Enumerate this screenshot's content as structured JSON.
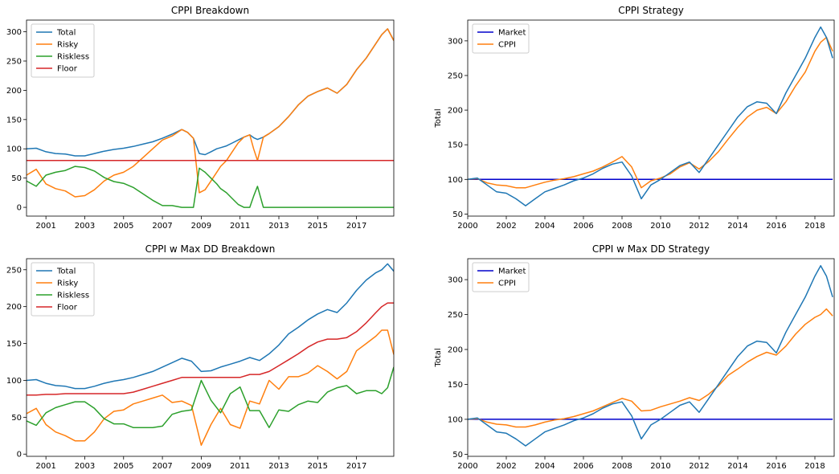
{
  "chart_data": [
    {
      "type": "line",
      "title": "CPPI Breakdown",
      "xlabel": "",
      "ylabel": "",
      "x_ticks": [
        "2001",
        "2003",
        "2005",
        "2007",
        "2009",
        "2011",
        "2013",
        "2015",
        "2017"
      ],
      "y_ticks": [
        "0",
        "50",
        "100",
        "150",
        "200",
        "250",
        "300"
      ],
      "xlim": [
        2000.0,
        2018.92
      ],
      "ylim": [
        -15,
        320
      ],
      "legend": "top-left",
      "x": [
        2000.0,
        2000.5,
        2001.0,
        2001.5,
        2002.0,
        2002.5,
        2003.0,
        2003.5,
        2004.0,
        2004.5,
        2005.0,
        2005.5,
        2006.0,
        2006.5,
        2007.0,
        2007.5,
        2008.0,
        2008.3,
        2008.6,
        2008.9,
        2009.2,
        2009.5,
        2009.8,
        2010.0,
        2010.3,
        2010.6,
        2010.9,
        2011.2,
        2011.5,
        2011.7,
        2011.9,
        2012.2,
        2012.5,
        2013.0,
        2013.5,
        2014.0,
        2014.5,
        2015.0,
        2015.5,
        2016.0,
        2016.5,
        2017.0,
        2017.5,
        2018.0,
        2018.3,
        2018.6,
        2018.92
      ],
      "series": [
        {
          "name": "Total",
          "color": "#1f77b4",
          "values": [
            100,
            101,
            95,
            92,
            91,
            88,
            88,
            92,
            96,
            99,
            101,
            104,
            108,
            112,
            118,
            125,
            133,
            128,
            118,
            92,
            90,
            95,
            100,
            102,
            105,
            110,
            115,
            120,
            124,
            119,
            116,
            120,
            126,
            138,
            155,
            175,
            190,
            198,
            204,
            195,
            210,
            235,
            255,
            280,
            295,
            305,
            285
          ]
        },
        {
          "name": "Risky",
          "color": "#ff7f0e",
          "values": [
            55,
            65,
            40,
            32,
            28,
            18,
            20,
            30,
            45,
            55,
            60,
            70,
            85,
            100,
            115,
            122,
            133,
            128,
            118,
            25,
            30,
            45,
            60,
            70,
            80,
            95,
            110,
            120,
            124,
            100,
            80,
            120,
            126,
            138,
            155,
            175,
            190,
            198,
            204,
            195,
            210,
            235,
            255,
            280,
            295,
            305,
            285
          ]
        },
        {
          "name": "Riskless",
          "color": "#2ca02c",
          "values": [
            45,
            36,
            55,
            60,
            63,
            70,
            68,
            62,
            51,
            44,
            41,
            34,
            23,
            12,
            3,
            3,
            0,
            0,
            0,
            67,
            60,
            50,
            40,
            32,
            25,
            15,
            5,
            0,
            0,
            19,
            36,
            0,
            0,
            0,
            0,
            0,
            0,
            0,
            0,
            0,
            0,
            0,
            0,
            0,
            0,
            0,
            0
          ]
        },
        {
          "name": "Floor",
          "color": "#d62728",
          "values": [
            80,
            80,
            80,
            80,
            80,
            80,
            80,
            80,
            80,
            80,
            80,
            80,
            80,
            80,
            80,
            80,
            80,
            80,
            80,
            80,
            80,
            80,
            80,
            80,
            80,
            80,
            80,
            80,
            80,
            80,
            80,
            80,
            80,
            80,
            80,
            80,
            80,
            80,
            80,
            80,
            80,
            80,
            80,
            80,
            80,
            80,
            80
          ]
        }
      ]
    },
    {
      "type": "line",
      "title": "CPPI Strategy",
      "xlabel": "",
      "ylabel": "Total",
      "x_ticks": [
        "2000",
        "2002",
        "2004",
        "2006",
        "2008",
        "2010",
        "2012",
        "2014",
        "2016",
        "2018"
      ],
      "y_ticks": [
        "50",
        "100",
        "150",
        "200",
        "250",
        "300"
      ],
      "xlim": [
        2000.0,
        2019.0
      ],
      "ylim": [
        47,
        330
      ],
      "legend": "top-left",
      "x": [
        2000.0,
        2000.5,
        2001.0,
        2001.5,
        2002.0,
        2002.5,
        2003.0,
        2003.5,
        2004.0,
        2004.5,
        2005.0,
        2005.5,
        2006.0,
        2006.5,
        2007.0,
        2007.5,
        2008.0,
        2008.5,
        2009.0,
        2009.5,
        2010.0,
        2010.5,
        2011.0,
        2011.5,
        2012.0,
        2012.5,
        2013.0,
        2013.5,
        2014.0,
        2014.5,
        2015.0,
        2015.5,
        2016.0,
        2016.5,
        2017.0,
        2017.5,
        2018.0,
        2018.3,
        2018.6,
        2018.92
      ],
      "series": [
        {
          "name": "Market",
          "color": "#0000cc",
          "values": [
            100,
            100,
            100,
            100,
            100,
            100,
            100,
            100,
            100,
            100,
            100,
            100,
            100,
            100,
            100,
            100,
            100,
            100,
            100,
            100,
            100,
            100,
            100,
            100,
            100,
            100,
            100,
            100,
            100,
            100,
            100,
            100,
            100,
            100,
            100,
            100,
            100,
            100,
            100,
            100
          ]
        },
        {
          "name": "CPPI",
          "color": "#ff7f0e",
          "values": [
            100,
            101,
            95,
            92,
            91,
            88,
            88,
            92,
            96,
            99,
            101,
            104,
            108,
            112,
            118,
            125,
            133,
            118,
            88,
            98,
            102,
            108,
            118,
            124,
            115,
            126,
            140,
            158,
            175,
            190,
            200,
            204,
            195,
            212,
            235,
            255,
            285,
            298,
            305,
            285
          ]
        },
        {
          "name": "Total",
          "color": "#1f77b4",
          "values": [
            100,
            102,
            92,
            82,
            80,
            72,
            62,
            72,
            82,
            87,
            92,
            98,
            102,
            108,
            116,
            122,
            125,
            105,
            72,
            92,
            100,
            110,
            120,
            125,
            110,
            130,
            150,
            170,
            190,
            205,
            212,
            210,
            195,
            225,
            250,
            275,
            305,
            320,
            305,
            275
          ]
        }
      ]
    },
    {
      "type": "line",
      "title": "CPPI w Max DD Breakdown",
      "xlabel": "",
      "ylabel": "",
      "x_ticks": [
        "2001",
        "2003",
        "2005",
        "2007",
        "2009",
        "2011",
        "2013",
        "2015",
        "2017"
      ],
      "y_ticks": [
        "0",
        "50",
        "100",
        "150",
        "200",
        "250"
      ],
      "xlim": [
        2000.0,
        2018.92
      ],
      "ylim": [
        -3,
        265
      ],
      "legend": "top-left",
      "x": [
        2000.0,
        2000.5,
        2001.0,
        2001.5,
        2002.0,
        2002.5,
        2003.0,
        2003.5,
        2004.0,
        2004.5,
        2005.0,
        2005.5,
        2006.0,
        2006.5,
        2007.0,
        2007.5,
        2008.0,
        2008.5,
        2009.0,
        2009.5,
        2010.0,
        2010.5,
        2011.0,
        2011.5,
        2012.0,
        2012.5,
        2013.0,
        2013.5,
        2014.0,
        2014.5,
        2015.0,
        2015.5,
        2016.0,
        2016.5,
        2017.0,
        2017.5,
        2018.0,
        2018.3,
        2018.6,
        2018.92
      ],
      "series": [
        {
          "name": "Total",
          "color": "#1f77b4",
          "values": [
            100,
            101,
            96,
            93,
            92,
            89,
            89,
            92,
            96,
            99,
            101,
            104,
            108,
            112,
            118,
            124,
            130,
            126,
            112,
            113,
            118,
            122,
            126,
            131,
            127,
            136,
            148,
            163,
            172,
            182,
            190,
            196,
            192,
            205,
            222,
            236,
            246,
            250,
            258,
            248
          ]
        },
        {
          "name": "Risky",
          "color": "#ff7f0e",
          "values": [
            55,
            62,
            40,
            30,
            25,
            18,
            18,
            30,
            48,
            58,
            60,
            68,
            72,
            76,
            80,
            70,
            72,
            66,
            12,
            40,
            62,
            40,
            35,
            72,
            68,
            100,
            88,
            105,
            105,
            110,
            120,
            112,
            102,
            112,
            140,
            150,
            160,
            168,
            168,
            135
          ]
        },
        {
          "name": "Riskless",
          "color": "#2ca02c",
          "values": [
            45,
            39,
            56,
            63,
            67,
            71,
            71,
            62,
            48,
            41,
            41,
            36,
            36,
            36,
            38,
            54,
            58,
            60,
            100,
            73,
            56,
            82,
            91,
            59,
            59,
            36,
            60,
            58,
            67,
            72,
            70,
            84,
            90,
            93,
            82,
            86,
            86,
            82,
            90,
            118
          ]
        },
        {
          "name": "Floor",
          "color": "#d62728",
          "values": [
            80,
            80,
            81,
            81,
            82,
            82,
            82,
            82,
            82,
            82,
            82,
            84,
            88,
            92,
            96,
            100,
            104,
            104,
            104,
            104,
            104,
            104,
            104,
            108,
            108,
            112,
            120,
            128,
            136,
            145,
            152,
            156,
            156,
            158,
            166,
            178,
            192,
            200,
            205,
            205
          ]
        }
      ]
    },
    {
      "type": "line",
      "title": "CPPI w Max DD Strategy",
      "xlabel": "",
      "ylabel": "Total",
      "x_ticks": [
        "2000",
        "2002",
        "2004",
        "2006",
        "2008",
        "2010",
        "2012",
        "2014",
        "2016",
        "2018"
      ],
      "y_ticks": [
        "50",
        "100",
        "150",
        "200",
        "250",
        "300"
      ],
      "xlim": [
        2000.0,
        2019.0
      ],
      "ylim": [
        47,
        330
      ],
      "legend": "top-left",
      "x": [
        2000.0,
        2000.5,
        2001.0,
        2001.5,
        2002.0,
        2002.5,
        2003.0,
        2003.5,
        2004.0,
        2004.5,
        2005.0,
        2005.5,
        2006.0,
        2006.5,
        2007.0,
        2007.5,
        2008.0,
        2008.5,
        2009.0,
        2009.5,
        2010.0,
        2010.5,
        2011.0,
        2011.5,
        2012.0,
        2012.5,
        2013.0,
        2013.5,
        2014.0,
        2014.5,
        2015.0,
        2015.5,
        2016.0,
        2016.5,
        2017.0,
        2017.5,
        2018.0,
        2018.3,
        2018.6,
        2018.92
      ],
      "series": [
        {
          "name": "Market",
          "color": "#0000cc",
          "values": [
            100,
            100,
            100,
            100,
            100,
            100,
            100,
            100,
            100,
            100,
            100,
            100,
            100,
            100,
            100,
            100,
            100,
            100,
            100,
            100,
            100,
            100,
            100,
            100,
            100,
            100,
            100,
            100,
            100,
            100,
            100,
            100,
            100,
            100,
            100,
            100,
            100,
            100,
            100,
            100
          ]
        },
        {
          "name": "CPPI",
          "color": "#ff7f0e",
          "values": [
            100,
            101,
            96,
            93,
            92,
            89,
            89,
            92,
            96,
            99,
            101,
            104,
            108,
            112,
            118,
            124,
            130,
            126,
            112,
            113,
            118,
            122,
            126,
            131,
            127,
            136,
            148,
            163,
            172,
            182,
            190,
            196,
            192,
            205,
            222,
            236,
            246,
            250,
            258,
            248
          ]
        },
        {
          "name": "Total",
          "color": "#1f77b4",
          "values": [
            100,
            102,
            92,
            82,
            80,
            72,
            62,
            72,
            82,
            87,
            92,
            98,
            102,
            108,
            116,
            122,
            125,
            105,
            72,
            92,
            100,
            110,
            120,
            125,
            110,
            130,
            150,
            170,
            190,
            205,
            212,
            210,
            195,
            225,
            250,
            275,
            305,
            320,
            305,
            275
          ]
        }
      ]
    }
  ]
}
